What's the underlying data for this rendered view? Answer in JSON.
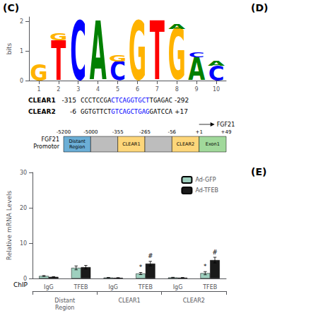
{
  "panel_labels": [
    "(C)",
    "(D)",
    "(E)"
  ],
  "chart_data": [
    {
      "type": "logo",
      "ylabel": "bits",
      "xlim": [
        0.5,
        10.5
      ],
      "xticks": [
        1,
        2,
        3,
        4,
        5,
        6,
        7,
        8,
        9,
        10
      ],
      "ylim": [
        0,
        2.15
      ],
      "yticks": [
        0,
        1,
        2
      ],
      "grid": false,
      "positions": [
        {
          "x": 1,
          "stack": [
            {
              "letter": "G",
              "bits": 0.55,
              "color": "#FFB300"
            }
          ]
        },
        {
          "x": 2,
          "stack": [
            {
              "letter": "T",
              "bits": 1.35,
              "color": "#FF0000"
            },
            {
              "letter": "G",
              "bits": 0.25,
              "color": "#FFB300"
            }
          ]
        },
        {
          "x": 3,
          "stack": [
            {
              "letter": "C",
              "bits": 2.0,
              "color": "#0000FF"
            }
          ]
        },
        {
          "x": 4,
          "stack": [
            {
              "letter": "A",
              "bits": 2.0,
              "color": "#008000"
            }
          ]
        },
        {
          "x": 5,
          "stack": [
            {
              "letter": "C",
              "bits": 0.65,
              "color": "#0000FF"
            },
            {
              "letter": "G",
              "bits": 0.2,
              "color": "#FFB300"
            }
          ]
        },
        {
          "x": 6,
          "stack": [
            {
              "letter": "G",
              "bits": 2.0,
              "color": "#FFB300"
            }
          ]
        },
        {
          "x": 7,
          "stack": [
            {
              "letter": "T",
              "bits": 2.0,
              "color": "#FF0000"
            }
          ]
        },
        {
          "x": 8,
          "stack": [
            {
              "letter": "G",
              "bits": 1.75,
              "color": "#FFB300"
            },
            {
              "letter": "A",
              "bits": 0.15,
              "color": "#008000"
            }
          ]
        },
        {
          "x": 9,
          "stack": [
            {
              "letter": "A",
              "bits": 0.78,
              "color": "#008000"
            },
            {
              "letter": "C",
              "bits": 0.15,
              "color": "#0000FF"
            }
          ]
        },
        {
          "x": 10,
          "stack": [
            {
              "letter": "C",
              "bits": 0.5,
              "color": "#0000FF"
            },
            {
              "letter": "A",
              "bits": 0.15,
              "color": "#008000"
            }
          ]
        }
      ]
    },
    {
      "type": "sequences",
      "motif_color": "blue",
      "lines": [
        {
          "name": "CLEAR1",
          "start": "-315",
          "pre": "CCCTCCGA",
          "motif": "CTCAGGTGCT",
          "post": "TGAGAC",
          "end": "-292"
        },
        {
          "name": "CLEAR2",
          "start": "-6",
          "pre": "GGTGTTCT",
          "motif": "GTCAGCTGAG",
          "post": "GATCCA",
          "end": "+17"
        }
      ]
    },
    {
      "type": "promoter",
      "title": "FGF21\nPromotor",
      "arrow_label": "FGF21",
      "regions": [
        {
          "label": "Distant\nRegion",
          "color": "#6BAED6"
        },
        {
          "label": null,
          "color": "#BDBDBD"
        },
        {
          "label": "CLEAR1",
          "color": "#FDD67A"
        },
        {
          "label": null,
          "color": "#BDBDBD"
        },
        {
          "label": "CLEAR2",
          "color": "#FDD67A"
        },
        {
          "label": "Exon1",
          "color": "#A1D99B"
        }
      ],
      "boundary_labels": [
        "-5200",
        "-5000",
        "-355",
        "-265",
        "-56",
        "+1",
        "+49"
      ]
    },
    {
      "type": "bar",
      "ylabel": "Relative mRNA Levels",
      "xlabel": "ChIP",
      "categories": [
        "IgG",
        "TFEB",
        "IgG",
        "TFEB",
        "IgG",
        "TFEB"
      ],
      "groups": [
        "Distant\nRegion",
        "CLEAR1",
        "CLEAR2"
      ],
      "ylim": [
        0,
        30
      ],
      "yticks": [
        0,
        10,
        20,
        30
      ],
      "grid": false,
      "legend": "upper right",
      "series": [
        {
          "name": "Ad-GFP",
          "color": "#9ECFBE",
          "values": [
            0.7,
            3.0,
            0.25,
            1.4,
            0.28,
            1.5
          ],
          "errors": [
            0.12,
            0.55,
            0.04,
            0.3,
            0.05,
            0.45
          ],
          "marks": [
            null,
            null,
            null,
            "*",
            null,
            "*"
          ]
        },
        {
          "name": "Ad-TFEB",
          "color": "#1A1A1A",
          "values": [
            0.45,
            3.2,
            0.18,
            4.2,
            0.22,
            5.2
          ],
          "errors": [
            0.08,
            0.5,
            0.04,
            0.65,
            0.05,
            0.8
          ],
          "marks": [
            null,
            null,
            null,
            "#",
            null,
            "#"
          ]
        }
      ]
    }
  ]
}
